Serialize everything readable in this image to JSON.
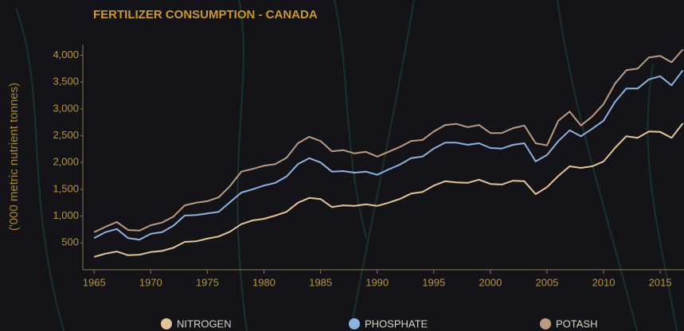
{
  "chart_data": {
    "type": "stacked_line",
    "title": "FERTILIZER CONSUMPTION - CANADA",
    "y_label": "('000 metric nutrient tonnes)",
    "x": [
      1965,
      1966,
      1967,
      1968,
      1969,
      1970,
      1971,
      1972,
      1973,
      1974,
      1975,
      1976,
      1977,
      1978,
      1979,
      1980,
      1981,
      1982,
      1983,
      1984,
      1985,
      1986,
      1987,
      1988,
      1989,
      1990,
      1991,
      1992,
      1993,
      1994,
      1995,
      1996,
      1997,
      1998,
      1999,
      2000,
      2001,
      2002,
      2003,
      2004,
      2005,
      2006,
      2007,
      2008,
      2009,
      2010,
      2011,
      2012,
      2013,
      2014,
      2015,
      2016,
      2017
    ],
    "series": [
      {
        "name": "NITROGEN",
        "color": "#e3c49a",
        "values": [
          240,
          300,
          340,
          270,
          280,
          330,
          350,
          410,
          520,
          530,
          580,
          620,
          710,
          850,
          920,
          950,
          1010,
          1080,
          1250,
          1340,
          1320,
          1170,
          1200,
          1190,
          1220,
          1190,
          1250,
          1320,
          1420,
          1450,
          1570,
          1650,
          1630,
          1620,
          1680,
          1600,
          1590,
          1660,
          1650,
          1410,
          1540,
          1750,
          1930,
          1900,
          1930,
          2020,
          2270,
          2490,
          2460,
          2580,
          2570,
          2460,
          2730
        ]
      },
      {
        "name": "PHOSPHATE",
        "color": "#8fb1e0",
        "values": [
          350,
          400,
          420,
          320,
          280,
          340,
          350,
          410,
          490,
          490,
          470,
          460,
          550,
          590,
          580,
          620,
          610,
          660,
          720,
          740,
          680,
          660,
          640,
          620,
          610,
          580,
          620,
          640,
          660,
          660,
          690,
          720,
          740,
          710,
          680,
          670,
          670,
          670,
          710,
          610,
          600,
          650,
          670,
          590,
          700,
          760,
          860,
          890,
          920,
          970,
          1040,
          980,
          990
        ]
      },
      {
        "name": "POTASH",
        "color": "#b99b84",
        "values": [
          110,
          100,
          130,
          150,
          170,
          160,
          180,
          170,
          190,
          230,
          230,
          270,
          300,
          390,
          380,
          370,
          350,
          350,
          390,
          400,
          400,
          380,
          390,
          360,
          370,
          340,
          330,
          330,
          320,
          310,
          320,
          330,
          350,
          330,
          340,
          280,
          290,
          310,
          330,
          340,
          180,
          380,
          350,
          200,
          230,
          310,
          340,
          340,
          370,
          410,
          380,
          430,
          390
        ]
      }
    ],
    "xlim": [
      1964,
      2017.1
    ],
    "xticks": [
      1965,
      1970,
      1975,
      1980,
      1985,
      1990,
      1995,
      2000,
      2005,
      2010,
      2015
    ],
    "ylim": [
      0,
      4200
    ],
    "yticks": [
      500,
      {
        "value": 1000,
        "label": "1,000"
      },
      {
        "value": 1500,
        "label": "1,500"
      },
      {
        "value": 2000,
        "label": "2,000"
      },
      {
        "value": 2500,
        "label": "2,500"
      },
      {
        "value": 3000,
        "label": "3,000"
      },
      {
        "value": 3500,
        "label": "3,500"
      },
      {
        "value": 4000,
        "label": "4,000"
      }
    ],
    "grid": false
  }
}
